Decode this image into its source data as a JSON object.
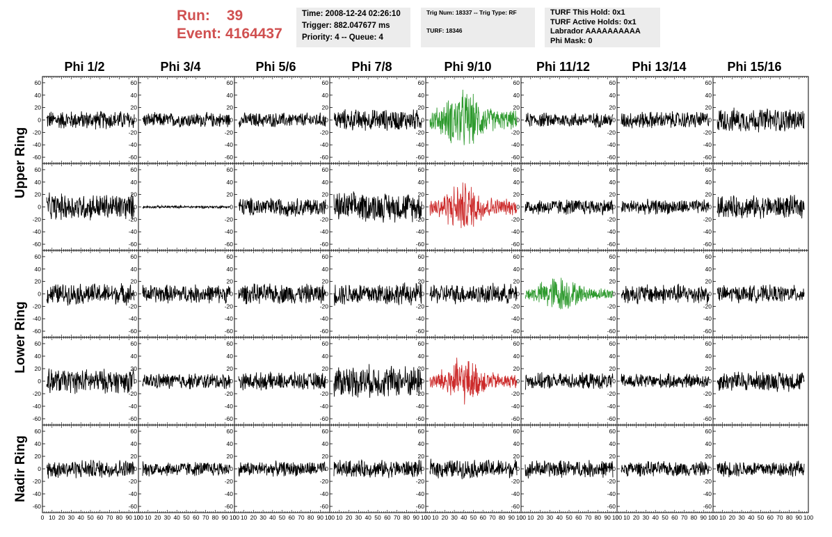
{
  "header": {
    "run_label": "Run:",
    "run_value": "39",
    "event_label": "Event:",
    "event_value": "4164437",
    "time_line": "Time: 2008-12-24 02:26:10",
    "trigger_line": "Trigger: 882.047677 ms",
    "priority_line": "Priority: 4 -- Queue: 4",
    "trig_line": "Trig Num: 18337 -- Trig Type: RF",
    "turf_line": "TURF: 18346",
    "turf_hold_line": "TURF This Hold: 0x1",
    "turf_active_line": "TURF Active Holds: 0x1",
    "labrador_line": "Labrador AAAAAAAAAA",
    "phimask_line": "Phi Mask: 0"
  },
  "columns": [
    "Phi 1/2",
    "Phi 3/4",
    "Phi 5/6",
    "Phi 7/8",
    "Phi 9/10",
    "Phi 11/12",
    "Phi 13/14",
    "Phi 15/16"
  ],
  "rings": [
    {
      "label": "Upper Ring"
    },
    {
      "label": "Lower Ring"
    },
    {
      "label": "Nadir Ring"
    }
  ],
  "axis": {
    "y_ticks": [
      -60,
      -40,
      -20,
      0,
      20,
      40,
      60
    ],
    "x_ticks": [
      0,
      10,
      20,
      30,
      40,
      50,
      60,
      70,
      80,
      90,
      100
    ],
    "x_range": [
      0,
      100
    ],
    "y_range": [
      -70,
      70
    ]
  },
  "colors": {
    "run_text": "#d05050",
    "trace_default": "#000000",
    "trace_green": "#2e9a2e",
    "trace_red": "#cc2a2a",
    "info_box_bg": "#ececec"
  },
  "traces": [
    [
      {
        "amp": 14,
        "color": "black"
      },
      {
        "amp": 11,
        "color": "black"
      },
      {
        "amp": 11,
        "color": "black"
      },
      {
        "amp": 16,
        "color": "black"
      },
      {
        "amp": 26,
        "color": "green",
        "burst": true
      },
      {
        "amp": 11,
        "color": "black"
      },
      {
        "amp": 13,
        "color": "black"
      },
      {
        "amp": 18,
        "color": "black"
      }
    ],
    [
      {
        "amp": 20,
        "color": "black"
      },
      {
        "amp": 2,
        "color": "black"
      },
      {
        "amp": 14,
        "color": "black"
      },
      {
        "amp": 22,
        "color": "black"
      },
      {
        "amp": 22,
        "color": "red",
        "burst": true
      },
      {
        "amp": 12,
        "color": "black"
      },
      {
        "amp": 11,
        "color": "black"
      },
      {
        "amp": 17,
        "color": "black"
      }
    ],
    [
      {
        "amp": 16,
        "color": "black"
      },
      {
        "amp": 14,
        "color": "black"
      },
      {
        "amp": 15,
        "color": "black"
      },
      {
        "amp": 17,
        "color": "black"
      },
      {
        "amp": 15,
        "color": "black"
      },
      {
        "amp": 16,
        "color": "green",
        "burst": true
      },
      {
        "amp": 15,
        "color": "black"
      },
      {
        "amp": 13,
        "color": "black"
      }
    ],
    [
      {
        "amp": 18,
        "color": "black"
      },
      {
        "amp": 12,
        "color": "black"
      },
      {
        "amp": 13,
        "color": "black"
      },
      {
        "amp": 24,
        "color": "black"
      },
      {
        "amp": 20,
        "color": "red",
        "burst": true
      },
      {
        "amp": 12,
        "color": "black"
      },
      {
        "amp": 11,
        "color": "black"
      },
      {
        "amp": 15,
        "color": "black"
      }
    ],
    [
      {
        "amp": 14,
        "color": "black"
      },
      {
        "amp": 11,
        "color": "black"
      },
      {
        "amp": 11,
        "color": "black"
      },
      {
        "amp": 13,
        "color": "black"
      },
      {
        "amp": 14,
        "color": "black"
      },
      {
        "amp": 13,
        "color": "black"
      },
      {
        "amp": 11,
        "color": "black"
      },
      {
        "amp": 12,
        "color": "black"
      }
    ]
  ]
}
